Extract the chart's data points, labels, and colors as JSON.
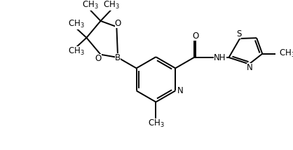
{
  "background": "#ffffff",
  "line_color": "#000000",
  "line_width": 1.4,
  "font_size": 8.5,
  "figsize": [
    4.18,
    2.14
  ],
  "dpi": 100,
  "xlim": [
    0,
    10
  ],
  "ylim": [
    0,
    5.2
  ]
}
